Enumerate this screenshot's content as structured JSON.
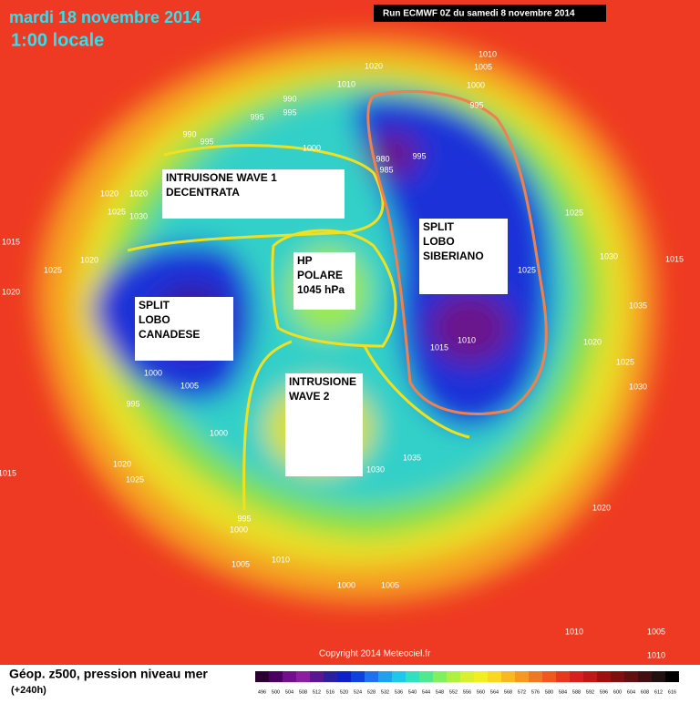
{
  "header": {
    "title": "mardi 18 novembre 2014",
    "subtitle": "1:00 locale",
    "run": "Run ECMWF 0Z du samedi 8 novembre 2014"
  },
  "annotations": [
    {
      "lines": [
        "INTRUISONE WAVE 1",
        "DECENTRATA"
      ]
    },
    {
      "lines": [
        "HP",
        "POLARE",
        "1045 hPa"
      ]
    },
    {
      "lines": [
        "SPLIT",
        "LOBO",
        "SIBERIANO"
      ]
    },
    {
      "lines": [
        "SPLIT",
        "LOBO",
        "CANADESE"
      ]
    },
    {
      "lines": [
        "INTRUSIONE",
        "WAVE 2"
      ]
    }
  ],
  "pressure_labels": [
    "1010",
    "1005",
    "1010",
    "1020",
    "1000",
    "995",
    "990",
    "995",
    "995",
    "990",
    "995",
    "1000",
    "980",
    "985",
    "995",
    "1020",
    "1020",
    "1025",
    "1030",
    "1015",
    "1025",
    "1020",
    "1020",
    "1025",
    "1030",
    "1015",
    "1025",
    "1035",
    "1020",
    "1025",
    "1030",
    "1010",
    "1015",
    "1005",
    "1000",
    "995",
    "1000",
    "1020",
    "1025",
    "1015",
    "1035",
    "1030",
    "995",
    "1000",
    "1005",
    "1010",
    "1005",
    "1000",
    "1020",
    "1010",
    "1005",
    "1010"
  ],
  "footer": {
    "legend_title": "Géop. z500, pression niveau mer",
    "lead_time": "(+240h)",
    "copyright": "Copyright 2014 Meteociel.fr",
    "scale_labels": [
      "496",
      "500",
      "504",
      "508",
      "512",
      "516",
      "520",
      "524",
      "528",
      "532",
      "536",
      "540",
      "544",
      "548",
      "552",
      "556",
      "560",
      "564",
      "568",
      "572",
      "576",
      "580",
      "584",
      "588",
      "592",
      "596",
      "600",
      "604",
      "608",
      "612",
      "616"
    ]
  }
}
